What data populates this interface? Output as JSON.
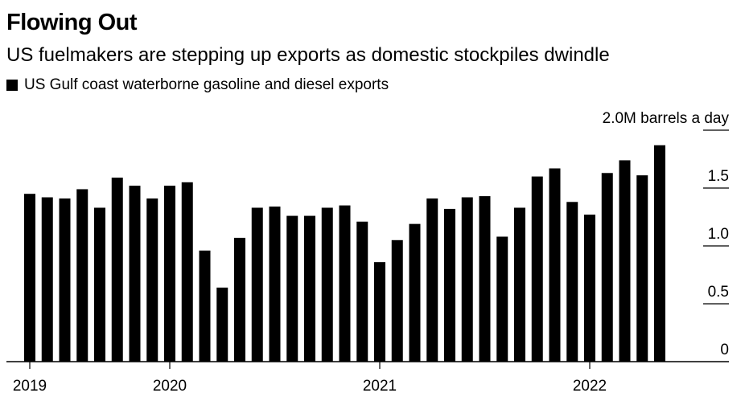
{
  "title": "Flowing Out",
  "subtitle": "US fuelmakers are stepping up exports as domestic stockpiles dwindle",
  "legend_label": "US Gulf coast waterborne gasoline and diesel exports",
  "colors": {
    "bar": "#000000",
    "axis": "#000000",
    "background": "#ffffff"
  },
  "chart_data": {
    "type": "bar",
    "title": "Flowing Out",
    "subtitle": "US fuelmakers are stepping up exports as domestic stockpiles dwindle",
    "series": [
      {
        "name": "US Gulf coast waterborne gasoline and diesel exports",
        "values": [
          1.45,
          1.42,
          1.41,
          1.49,
          1.33,
          1.59,
          1.52,
          1.41,
          1.52,
          1.55,
          0.96,
          0.64,
          1.07,
          1.33,
          1.34,
          1.26,
          1.26,
          1.33,
          1.35,
          1.21,
          0.86,
          1.05,
          1.19,
          1.41,
          1.32,
          1.42,
          1.43,
          1.08,
          1.33,
          1.6,
          1.67,
          1.38,
          1.27,
          1.63,
          1.74,
          1.61,
          1.87
        ]
      }
    ],
    "categories": [
      "2019-01",
      "2019-02",
      "2019-03",
      "2019-04",
      "2019-05",
      "2019-06",
      "2019-07",
      "2019-08",
      "2019-09",
      "2019-10",
      "2019-11",
      "2019-12",
      "2020-01",
      "2020-02",
      "2020-03",
      "2020-04",
      "2020-05",
      "2020-06",
      "2020-07",
      "2020-08",
      "2020-09",
      "2020-10",
      "2020-11",
      "2020-12",
      "2021-01",
      "2021-02",
      "2021-03",
      "2021-04",
      "2021-05",
      "2021-06",
      "2021-07",
      "2021-08",
      "2021-09",
      "2021-10",
      "2021-11",
      "2021-12",
      "2022-01"
    ],
    "ylim": [
      0,
      2.0
    ],
    "y_unit_label": "2.0M barrels a day",
    "y_ticks": [
      {
        "value": 0,
        "label": "0"
      },
      {
        "value": 0.5,
        "label": "0.5"
      },
      {
        "value": 1.0,
        "label": "1.0"
      },
      {
        "value": 1.5,
        "label": "1.5"
      }
    ],
    "x_ticks": [
      {
        "index": 0,
        "label": "2019"
      },
      {
        "index": 8,
        "label": "2020"
      },
      {
        "index": 20,
        "label": "2021"
      },
      {
        "index": 32,
        "label": "2022"
      }
    ],
    "grid": false,
    "legend_position": "top-left"
  }
}
